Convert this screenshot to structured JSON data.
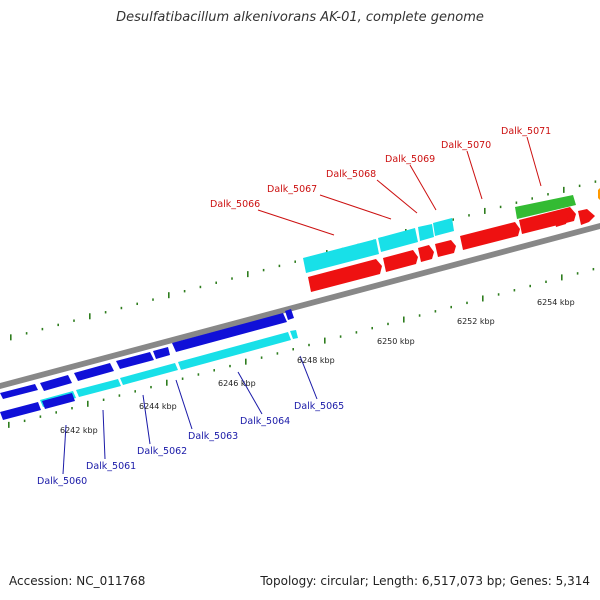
{
  "title": "Desulfatibacillum alkenivorans AK-01, complete genome",
  "footer": {
    "accession": "Accession: NC_011768",
    "summary": "Topology: circular; Length: 6,517,073 bp; Genes: 5,314"
  },
  "colors": {
    "backbone": "#888888",
    "tick": "#2e7d1e",
    "blue_gene": "#1010d8",
    "cyan_gene": "#18e0e8",
    "red_gene": "#ee1111",
    "green_gene": "#33bb33",
    "orange_gene": "#ff9900",
    "blue_label": "#1a1aa8",
    "red_label": "#cc1111"
  },
  "scale_labels": [
    "6242 kbp",
    "6244 kbp",
    "6246 kbp",
    "6248 kbp",
    "6250 kbp",
    "6252 kbp",
    "6254 kbp"
  ],
  "blue_labels": [
    "Dalk_5060",
    "Dalk_5061",
    "Dalk_5062",
    "Dalk_5063",
    "Dalk_5064",
    "Dalk_5065"
  ],
  "red_labels": [
    "Dalk_5066",
    "Dalk_5067",
    "Dalk_5068",
    "Dalk_5069",
    "Dalk_5070",
    "Dalk_5071"
  ]
}
